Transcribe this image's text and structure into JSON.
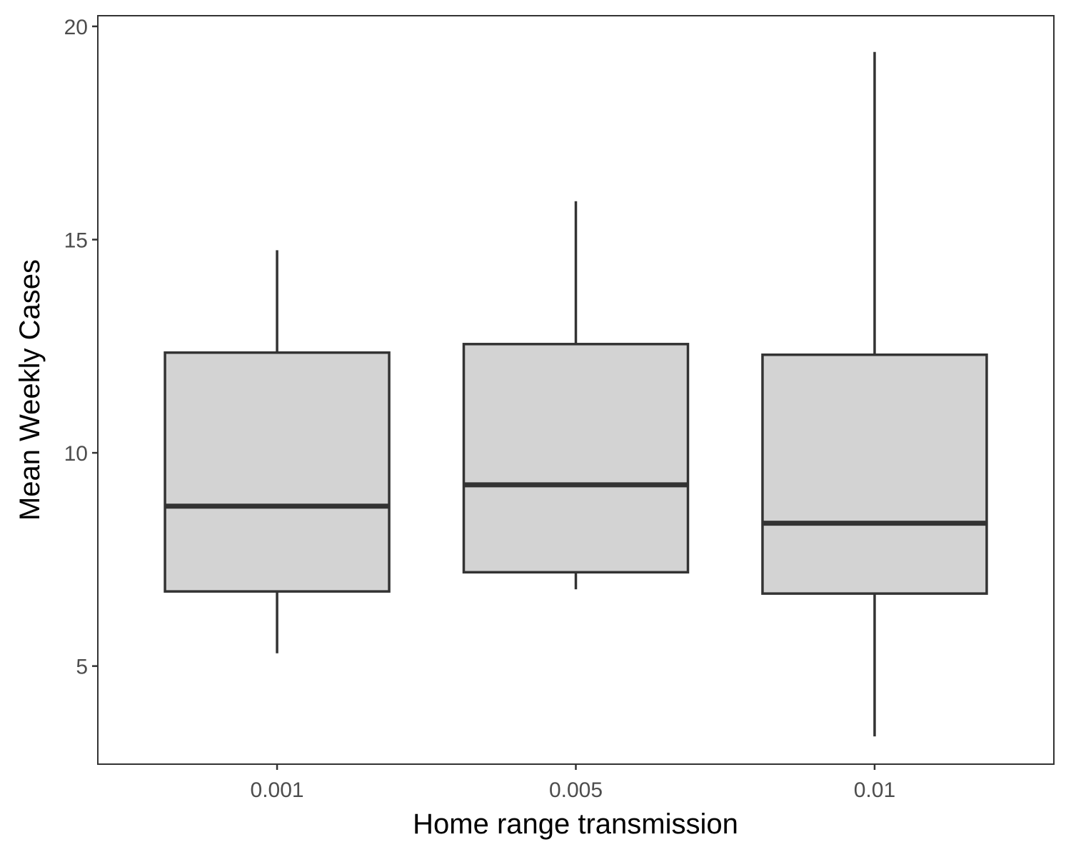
{
  "chart_data": {
    "type": "boxplot",
    "title": "",
    "xlabel": "Home range transmission",
    "ylabel": "Mean Weekly Cases",
    "categories": [
      "0.001",
      "0.005",
      "0.01"
    ],
    "boxes": [
      {
        "category": "0.001",
        "min": 5.3,
        "q1": 6.75,
        "median": 8.75,
        "q3": 12.35,
        "max": 14.75
      },
      {
        "category": "0.005",
        "min": 6.8,
        "q1": 7.2,
        "median": 9.25,
        "q3": 12.55,
        "max": 15.9
      },
      {
        "category": "0.01",
        "min": 3.35,
        "q1": 6.7,
        "median": 8.35,
        "q3": 12.3,
        "max": 19.4
      }
    ],
    "yticks": [
      5,
      10,
      15,
      20
    ],
    "ylim": [
      2.7,
      20.25
    ],
    "grid": false,
    "colors": {
      "box_fill": "#d3d3d3",
      "box_stroke": "#333333",
      "axis": "#333333",
      "tick_text": "#4d4d4d"
    }
  }
}
